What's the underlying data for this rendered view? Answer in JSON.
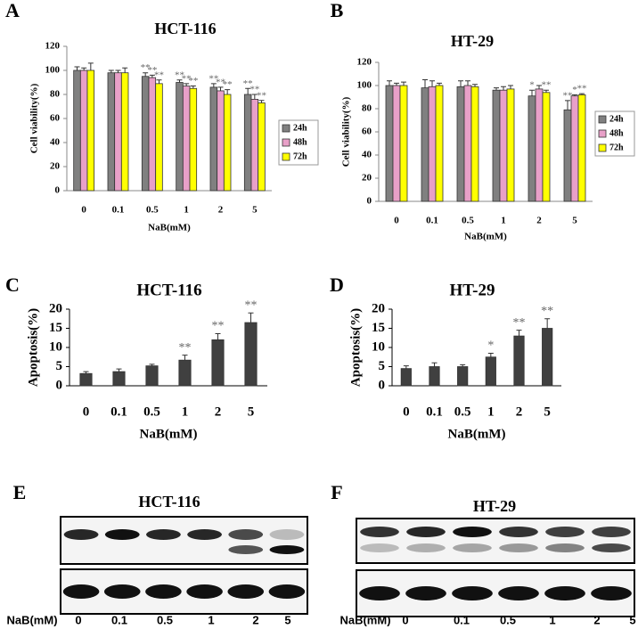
{
  "chart_data": [
    {
      "type": "bar",
      "panel": "A",
      "title": "HCT-116",
      "x_label": "NaB(mM)",
      "y_label": "Cell viability(%)",
      "categories": [
        "0",
        "0.1",
        "0.5",
        "1",
        "2",
        "5"
      ],
      "ylim": [
        0,
        120
      ],
      "yticks": [
        0,
        20,
        40,
        60,
        80,
        100,
        120
      ],
      "series": [
        {
          "name": "24h",
          "color": "#808080",
          "values": [
            100,
            98,
            95,
            90,
            86,
            80
          ],
          "errors": [
            3,
            2,
            3,
            2,
            3,
            5
          ],
          "significance": [
            null,
            null,
            "**",
            "**",
            "**",
            "**"
          ]
        },
        {
          "name": "48h",
          "color": "#e8a0c8",
          "values": [
            100,
            98,
            94,
            87,
            83,
            76
          ],
          "errors": [
            2,
            2,
            2,
            2,
            3,
            4
          ],
          "significance": [
            null,
            null,
            "**",
            "**",
            "**",
            "**"
          ]
        },
        {
          "name": "72h",
          "color": "#ffff00",
          "values": [
            100,
            98,
            89,
            85,
            80,
            73
          ],
          "errors": [
            6,
            4,
            3,
            2,
            4,
            2
          ],
          "significance": [
            null,
            null,
            "**",
            "**",
            "**",
            "**"
          ]
        }
      ]
    },
    {
      "type": "bar",
      "panel": "B",
      "title": "HT-29",
      "x_label": "NaB(mM)",
      "y_label": "Cell viability(%)",
      "categories": [
        "0",
        "0.1",
        "0.5",
        "1",
        "2",
        "5"
      ],
      "ylim": [
        0,
        120
      ],
      "yticks": [
        0,
        20,
        40,
        60,
        80,
        100,
        120
      ],
      "series": [
        {
          "name": "24h",
          "color": "#808080",
          "values": [
            100,
            98,
            99,
            96,
            91,
            79
          ],
          "errors": [
            4,
            7,
            5,
            2,
            5,
            8
          ],
          "significance": [
            null,
            null,
            null,
            null,
            "*",
            "**"
          ]
        },
        {
          "name": "48h",
          "color": "#e8a0c8",
          "values": [
            100,
            99,
            100,
            96,
            97,
            91
          ],
          "errors": [
            2,
            5,
            4,
            3,
            3,
            1
          ],
          "significance": [
            null,
            null,
            null,
            null,
            null,
            "*"
          ]
        },
        {
          "name": "72h",
          "color": "#ffff00",
          "values": [
            100,
            100,
            99,
            97,
            94,
            92
          ],
          "errors": [
            3,
            2,
            2,
            3,
            2,
            1
          ],
          "significance": [
            null,
            null,
            null,
            null,
            "**",
            "**"
          ]
        }
      ]
    },
    {
      "type": "bar",
      "panel": "C",
      "title": "HCT-116",
      "x_label": "NaB(mM)",
      "y_label": "Apoptosis(%)",
      "categories": [
        "0",
        "0.1",
        "0.5",
        "1",
        "2",
        "5"
      ],
      "ylim": [
        0,
        20
      ],
      "yticks": [
        0,
        5,
        10,
        15,
        20
      ],
      "color": "#404040",
      "values": [
        3.2,
        3.7,
        5.2,
        6.7,
        12,
        16.5
      ],
      "errors": [
        0.5,
        0.7,
        0.4,
        1.3,
        1.6,
        2.5
      ],
      "significance": [
        null,
        null,
        null,
        "**",
        "**",
        "**"
      ]
    },
    {
      "type": "bar",
      "panel": "D",
      "title": "HT-29",
      "x_label": "NaB(mM)",
      "y_label": "Apoptosis(%)",
      "categories": [
        "0",
        "0.1",
        "0.5",
        "1",
        "2",
        "5"
      ],
      "ylim": [
        0,
        20
      ],
      "yticks": [
        0,
        5,
        10,
        15,
        20
      ],
      "color": "#404040",
      "values": [
        4.5,
        5,
        5,
        7.5,
        13,
        15
      ],
      "errors": [
        0.7,
        1,
        0.5,
        1,
        1.5,
        2.5
      ],
      "significance": [
        null,
        null,
        null,
        "*",
        "**",
        "**"
      ]
    }
  ],
  "blots": [
    {
      "panel": "E",
      "title": "HCT-116",
      "label": "NaB(mM)",
      "lanes": [
        "0",
        "0.1",
        "0.5",
        "1",
        "2",
        "5"
      ]
    },
    {
      "panel": "F",
      "title": "HT-29",
      "label": "NaB(mM)",
      "lanes": [
        "0",
        "0.1",
        "0.5",
        "1",
        "2",
        "5"
      ]
    }
  ]
}
